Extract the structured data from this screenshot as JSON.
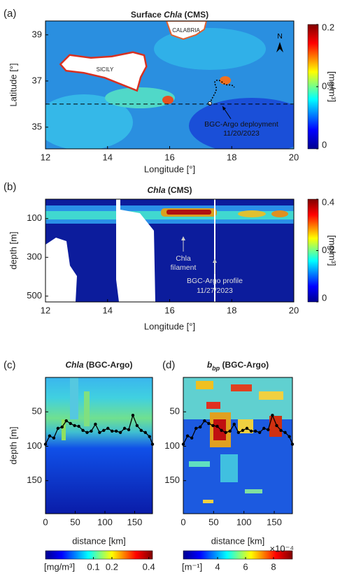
{
  "chart_data": [
    {
      "type": "heatmap",
      "panel_label": "(a)",
      "title_parts": [
        "Surface ",
        "Chla",
        " (CMS)"
      ],
      "xlabel": "Longitude [°]",
      "ylabel": "Latitude [°]",
      "xlim": [
        12,
        20
      ],
      "ylim": [
        34.06,
        39.6
      ],
      "xticks": [
        12,
        14,
        16,
        18,
        20
      ],
      "yticks": [
        35,
        37,
        39
      ],
      "colormap": "jet",
      "colorbar": {
        "label": "[mg/m³]",
        "lim": [
          0,
          0.2
        ],
        "ticks": [
          0,
          0.1,
          0.2
        ],
        "orientation": "vertical"
      },
      "reference_line_y": 36,
      "annotations": [
        "CALABRIA",
        "SICILY",
        "N",
        "BGC-Argo deployment",
        "11/20/2023"
      ]
    },
    {
      "type": "heatmap",
      "panel_label": "(b)",
      "title_parts": [
        "Chla",
        " (CMS)"
      ],
      "xlabel": "Longitude [°]",
      "ylabel": "depth [m]",
      "xlim": [
        12,
        20
      ],
      "ylim": [
        0,
        530
      ],
      "yreverse": true,
      "xticks": [
        12,
        14,
        16,
        18,
        20
      ],
      "yticks": [
        100,
        300,
        500
      ],
      "colormap": "jet",
      "colorbar": {
        "label": "[mg/m³]",
        "lim": [
          0,
          0.4
        ],
        "ticks": [
          0,
          0.2,
          0.4
        ],
        "orientation": "vertical"
      },
      "annotations": [
        "Chla",
        "filament",
        "BGC-Argo profile",
        "11/27/2023"
      ]
    },
    {
      "type": "line",
      "panel_label": "(c)",
      "title_parts": [
        "Chla",
        " (BGC-Argo)"
      ],
      "xlabel": "distance [km]",
      "ylabel": "depth [m]",
      "xlim": [
        0,
        180
      ],
      "ylim": [
        0,
        198
      ],
      "yreverse": true,
      "xticks": [
        0,
        50,
        100,
        150
      ],
      "yticks": [
        50,
        100,
        150
      ],
      "colormap": "jet",
      "colorbar": {
        "label": "[mg/m³]",
        "lim": [
          -0.16,
          0.42
        ],
        "ticks": [
          0.1,
          0.2,
          0.4
        ],
        "orientation": "horizontal"
      },
      "x": [
        0,
        7,
        14,
        21,
        28,
        35,
        42,
        49,
        56,
        63,
        70,
        77,
        84,
        91,
        98,
        105,
        112,
        119,
        126,
        133,
        140,
        147,
        154,
        161,
        168,
        175,
        180
      ],
      "values": [
        97,
        85,
        88,
        74,
        72,
        63,
        67,
        70,
        71,
        77,
        80,
        78,
        68,
        80,
        77,
        74,
        78,
        78,
        80,
        74,
        76,
        55,
        70,
        77,
        80,
        86,
        97
      ],
      "color": "#000000"
    },
    {
      "type": "line",
      "panel_label": "(d)",
      "title_parts": [
        "b",
        "bp",
        " (BGC-Argo)"
      ],
      "xlabel": "distance [km]",
      "xlim": [
        0,
        180
      ],
      "ylim": [
        0,
        198
      ],
      "yreverse": true,
      "xticks": [
        0,
        50,
        100,
        150
      ],
      "yticks": [
        50,
        100,
        150
      ],
      "colormap": "jet",
      "colorbar": {
        "label": "[m⁻¹]",
        "lim": [
          1.55,
          9.35
        ],
        "ticks": [
          4,
          6,
          8
        ],
        "exponent_label": "×10⁻⁴",
        "orientation": "horizontal"
      },
      "x": [
        0,
        7,
        14,
        21,
        28,
        35,
        42,
        49,
        56,
        63,
        70,
        77,
        84,
        91,
        98,
        105,
        112,
        119,
        126,
        133,
        140,
        147,
        154,
        161,
        168,
        175,
        180
      ],
      "values": [
        97,
        85,
        88,
        74,
        72,
        63,
        67,
        70,
        71,
        77,
        80,
        78,
        68,
        80,
        77,
        74,
        78,
        78,
        80,
        74,
        76,
        55,
        70,
        77,
        80,
        86,
        97
      ],
      "color": "#000000"
    }
  ]
}
